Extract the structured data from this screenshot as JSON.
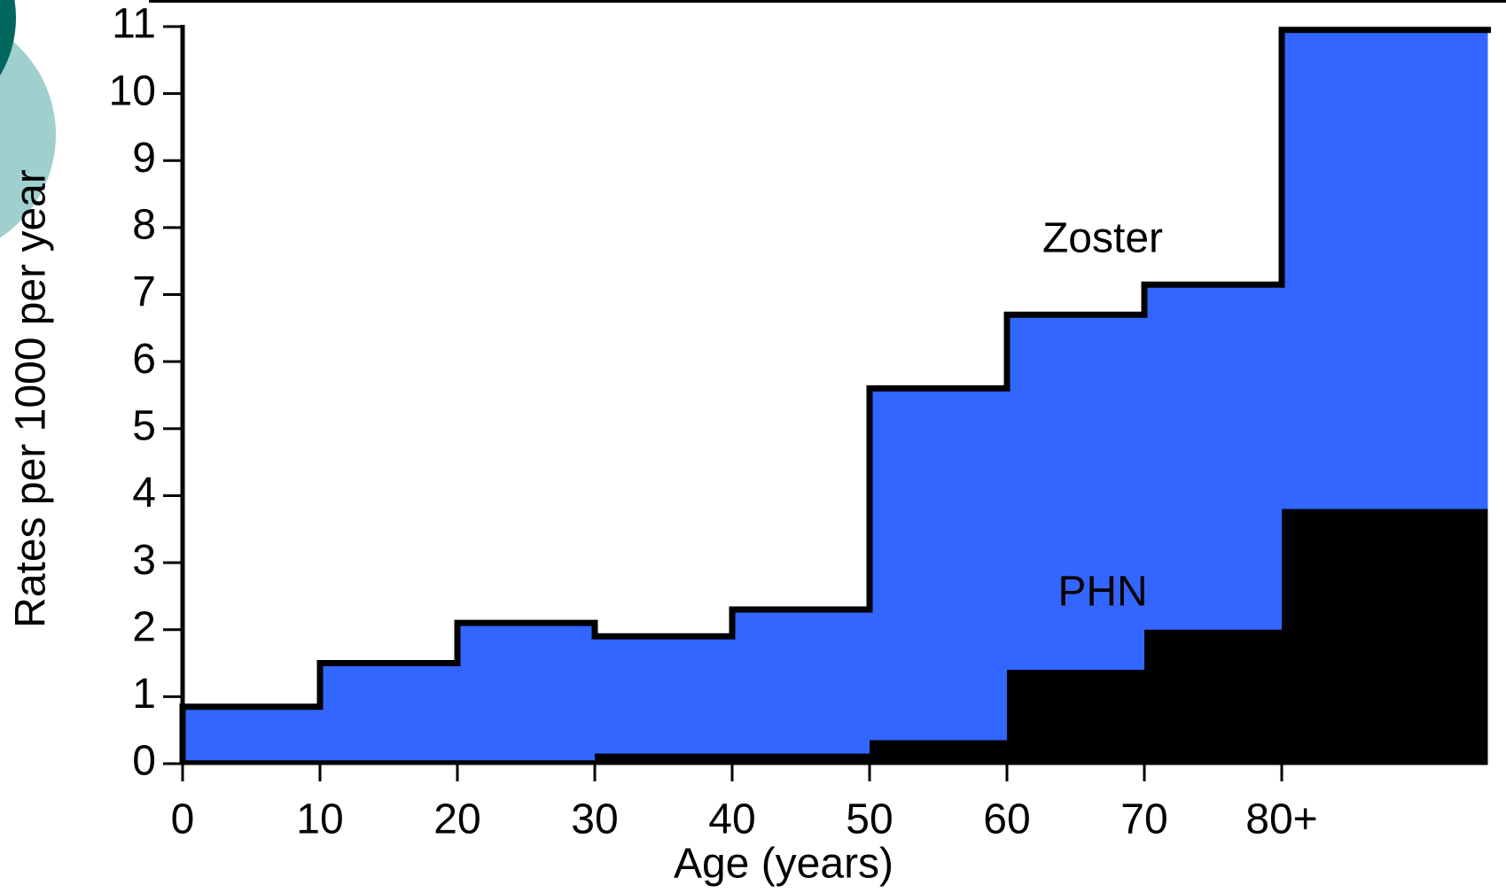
{
  "chart_data": {
    "type": "histogram",
    "x_label": "Age (years)",
    "y_label": "Rates per 1000 per year",
    "bins": [
      0,
      10,
      20,
      30,
      40,
      50,
      60,
      70,
      80,
      95
    ],
    "series": [
      {
        "name": "Zoster",
        "color": "#3366ff",
        "values": [
          0.85,
          1.5,
          2.1,
          1.9,
          2.3,
          5.6,
          6.7,
          7.15,
          10.95
        ]
      },
      {
        "name": "PHN",
        "color": "#000000",
        "values": [
          0.05,
          0.05,
          0.05,
          0.15,
          0.15,
          0.35,
          1.4,
          2.0,
          3.8
        ]
      }
    ],
    "xlim": [
      0,
      95
    ],
    "ylim": [
      0,
      11
    ],
    "xticks": [
      0,
      10,
      20,
      30,
      40,
      50,
      60,
      70,
      {
        "value": 80,
        "label": "80+"
      }
    ],
    "yticks": [
      0,
      1,
      2,
      3,
      4,
      5,
      6,
      7,
      8,
      9,
      10,
      11
    ]
  }
}
